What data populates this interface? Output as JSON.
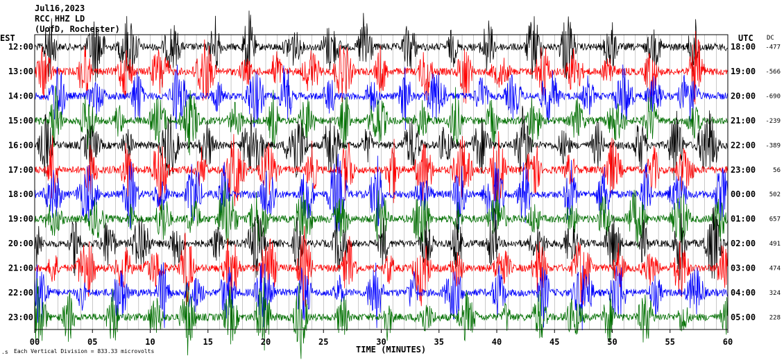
{
  "header": {
    "date": "Jul16,2023",
    "station": "RCC HHZ LD",
    "location": "(UofD, Rochester)"
  },
  "footer": {
    "scale_note": "Each Vertical Division = 833.33 microvolts",
    "x_axis_label": "TIME (MINUTES)"
  },
  "chart_data": {
    "type": "line",
    "title": "",
    "left_axis_label": "EST",
    "right_axis_label": "UTC",
    "dc_label": "DC",
    "x_ticks": [
      "00",
      "05",
      "10",
      "15",
      "20",
      "25",
      "30",
      "35",
      "40",
      "45",
      "50",
      "55",
      "60"
    ],
    "xlim": [
      0,
      60
    ],
    "rows": [
      {
        "est": "12:00",
        "utc": "18:00",
        "dc": "-477",
        "color": "#000000"
      },
      {
        "est": "13:00",
        "utc": "19:00",
        "dc": "-566",
        "color": "#ff0000"
      },
      {
        "est": "14:00",
        "utc": "20:00",
        "dc": "-690",
        "color": "#0000ff"
      },
      {
        "est": "15:00",
        "utc": "21:00",
        "dc": "-239",
        "color": "#007000"
      },
      {
        "est": "16:00",
        "utc": "22:00",
        "dc": "-389",
        "color": "#000000"
      },
      {
        "est": "17:00",
        "utc": "23:00",
        "dc": "56",
        "color": "#ff0000"
      },
      {
        "est": "18:00",
        "utc": "00:00",
        "dc": "502",
        "color": "#0000ff"
      },
      {
        "est": "19:00",
        "utc": "01:00",
        "dc": "657",
        "color": "#007000"
      },
      {
        "est": "20:00",
        "utc": "02:00",
        "dc": "491",
        "color": "#000000"
      },
      {
        "est": "21:00",
        "utc": "03:00",
        "dc": "474",
        "color": "#ff0000"
      },
      {
        "est": "22:00",
        "utc": "04:00",
        "dc": "324",
        "color": "#0000ff"
      },
      {
        "est": "23:00",
        "utc": "05:00",
        "dc": "228",
        "color": "#007000"
      }
    ]
  }
}
